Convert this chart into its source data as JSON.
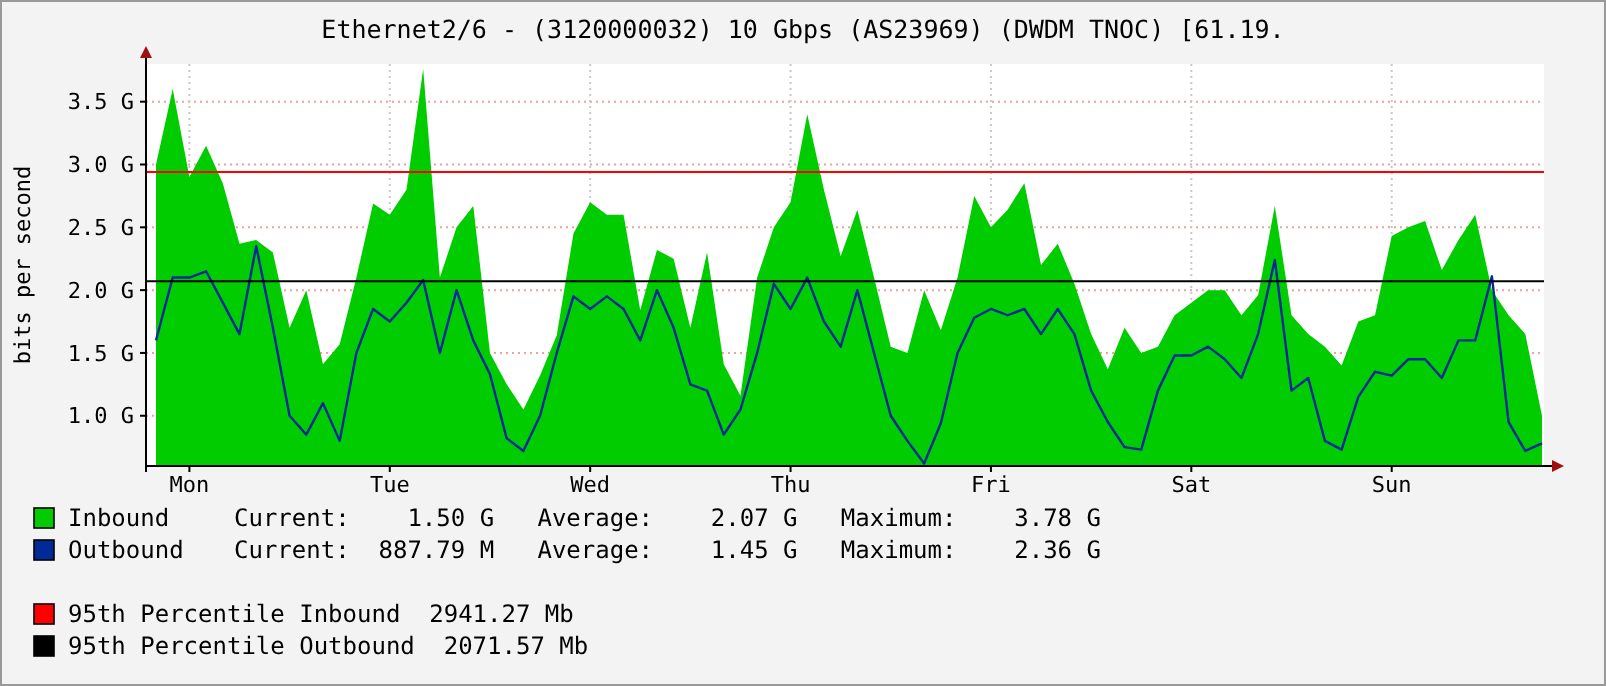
{
  "chart_data": {
    "type": "area",
    "title": "Ethernet2/6 - (3120000032) 10 Gbps (AS23969) (DWDM TNOC) [61.19.",
    "ylabel": "bits per second",
    "categories": [
      null,
      null,
      "Mon",
      null,
      null,
      null,
      null,
      null,
      null,
      null,
      null,
      null,
      null,
      null,
      "Tue",
      null,
      null,
      null,
      null,
      null,
      null,
      null,
      null,
      null,
      null,
      null,
      "Wed",
      null,
      null,
      null,
      null,
      null,
      null,
      null,
      null,
      null,
      null,
      null,
      "Thu",
      null,
      null,
      null,
      null,
      null,
      null,
      null,
      null,
      null,
      null,
      null,
      "Fri",
      null,
      null,
      null,
      null,
      null,
      null,
      null,
      null,
      null,
      null,
      null,
      "Sat",
      null,
      null,
      null,
      null,
      null,
      null,
      null,
      null,
      null,
      null,
      null,
      "Sun",
      null,
      null,
      null,
      null,
      null,
      null,
      null,
      null,
      null
    ],
    "ylim": [
      0.6,
      3.8
    ],
    "yticks": [
      {
        "value": 1,
        "label": "1.0 G"
      },
      {
        "value": 1.5,
        "label": "1.5 G"
      },
      {
        "value": 2,
        "label": "2.0 G"
      },
      {
        "value": 2.5,
        "label": "2.5 G"
      },
      {
        "value": 3,
        "label": "3.0 G"
      },
      {
        "value": 3.5,
        "label": "3.5 G"
      }
    ],
    "grid": true,
    "legend": "bottom",
    "series": [
      {
        "name": "Inbound",
        "color": "#00cc00",
        "values": [
          3.0,
          3.6,
          2.9,
          3.15,
          2.85,
          2.37,
          2.4,
          2.3,
          1.7,
          2.0,
          1.41,
          1.57,
          2.1,
          2.69,
          2.6,
          2.8,
          3.76,
          2.1,
          2.5,
          2.67,
          1.5,
          1.25,
          1.05,
          1.32,
          1.64,
          2.45,
          2.7,
          2.6,
          2.6,
          1.84,
          2.32,
          2.25,
          1.7,
          2.3,
          1.41,
          1.16,
          2.1,
          2.5,
          2.7,
          3.4,
          2.8,
          2.27,
          2.64,
          2.1,
          1.55,
          1.5,
          2.0,
          1.68,
          2.1,
          2.75,
          2.5,
          2.64,
          2.85,
          2.2,
          2.37,
          2.05,
          1.65,
          1.37,
          1.7,
          1.5,
          1.55,
          1.8,
          1.9,
          2.0,
          2.0,
          1.8,
          1.96,
          2.67,
          1.8,
          1.65,
          1.55,
          1.4,
          1.75,
          1.8,
          2.43,
          2.5,
          2.55,
          2.16,
          2.4,
          2.6,
          2.0,
          1.8,
          1.65,
          1.0
        ]
      },
      {
        "name": "Outbound",
        "type": "line",
        "color": "#002a97",
        "values": [
          1.6,
          2.1,
          2.1,
          2.15,
          1.9,
          1.65,
          2.35,
          1.7,
          1.0,
          0.85,
          1.1,
          0.8,
          1.5,
          1.85,
          1.75,
          1.9,
          2.08,
          1.5,
          2.0,
          1.6,
          1.33,
          0.82,
          0.72,
          1.0,
          1.5,
          1.95,
          1.85,
          1.95,
          1.85,
          1.6,
          2.0,
          1.7,
          1.25,
          1.2,
          0.85,
          1.05,
          1.5,
          2.05,
          1.85,
          2.1,
          1.75,
          1.55,
          2.0,
          1.5,
          1.0,
          0.8,
          0.62,
          0.94,
          1.5,
          1.78,
          1.85,
          1.8,
          1.85,
          1.65,
          1.85,
          1.65,
          1.2,
          0.95,
          0.75,
          0.73,
          1.2,
          1.48,
          1.48,
          1.55,
          1.45,
          1.3,
          1.65,
          2.24,
          1.2,
          1.3,
          0.8,
          0.73,
          1.15,
          1.35,
          1.32,
          1.45,
          1.45,
          1.3,
          1.6,
          1.6,
          2.11,
          0.95,
          0.72,
          0.78
        ]
      }
    ],
    "ref_lines": [
      {
        "axis": "y",
        "value": 2.94127,
        "label": "95th Percentile Inbound  2941.27 Mb",
        "color": "#ff0000"
      },
      {
        "axis": "y",
        "value": 2.07157,
        "label": "95th Percentile Outbound  2071.57 Mb",
        "color": "#000000"
      }
    ],
    "annotations": [
      "Current:    1.50 G   Average:    2.07 G   Maximum:    3.78 G",
      "Current:  887.79 M   Average:    1.45 G   Maximum:    2.36 G"
    ]
  }
}
